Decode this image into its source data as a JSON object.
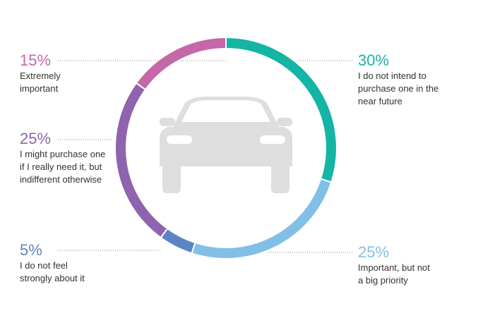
{
  "chart_data": {
    "type": "pie",
    "variant": "donut",
    "center_icon": "car-icon",
    "slices": [
      {
        "value": 30,
        "percent_label": "30%",
        "label": "I do not intend to purchase one in the near future",
        "color": "#14b5a5"
      },
      {
        "value": 25,
        "percent_label": "25%",
        "label": "Important, but not a big priority",
        "color": "#82bfe6"
      },
      {
        "value": 5,
        "percent_label": "5%",
        "label": "I do not feel strongly about it",
        "color": "#5b84c4"
      },
      {
        "value": 25,
        "percent_label": "25%",
        "label": "I might purchase one if I really need it, but indifferent otherwise",
        "color": "#8f63ad"
      },
      {
        "value": 15,
        "percent_label": "15%",
        "label": "Extremely important",
        "color": "#c567a8"
      }
    ]
  }
}
